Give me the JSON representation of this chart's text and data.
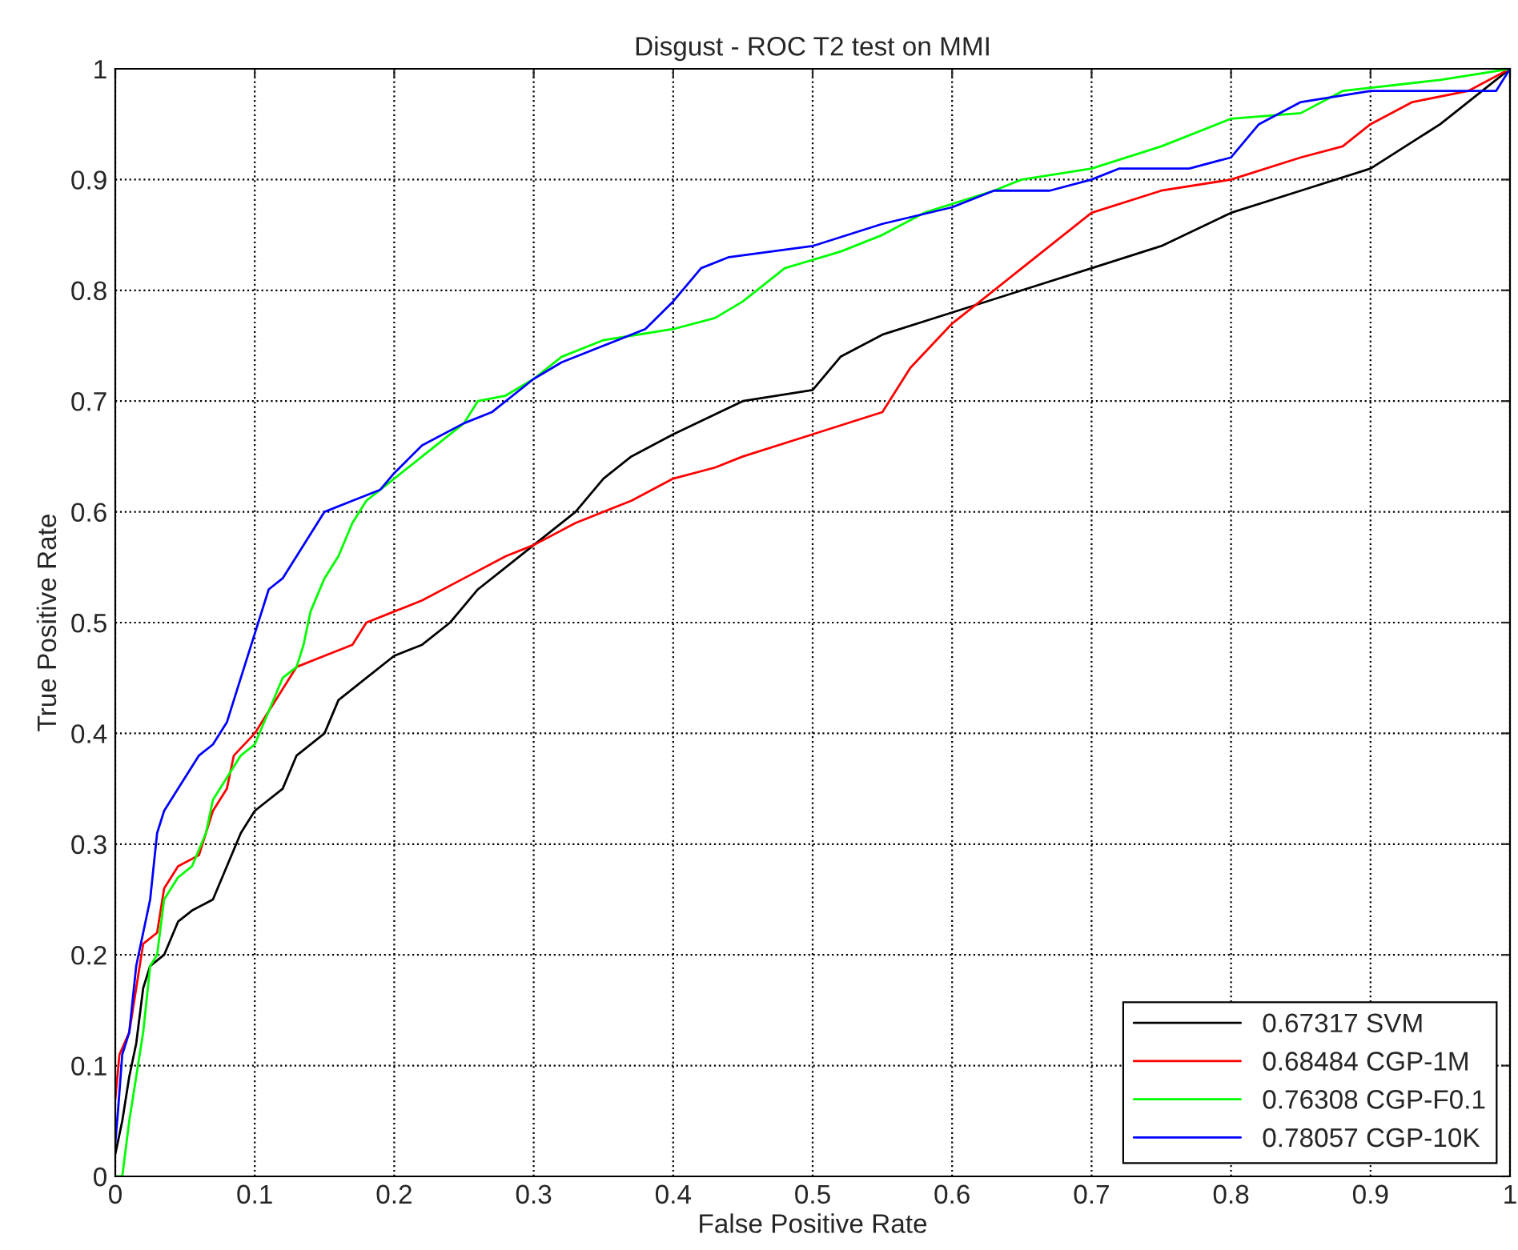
{
  "chart_data": {
    "type": "line",
    "title": "Disgust - ROC T2 test on MMI",
    "xlabel": "False Positive Rate",
    "ylabel": "True Positive Rate",
    "xlim": [
      0,
      1
    ],
    "ylim": [
      0,
      1
    ],
    "xticks": [
      0,
      0.1,
      0.2,
      0.3,
      0.4,
      0.5,
      0.6,
      0.7,
      0.8,
      0.9,
      1
    ],
    "yticks": [
      0,
      0.1,
      0.2,
      0.3,
      0.4,
      0.5,
      0.6,
      0.7,
      0.8,
      0.9,
      1
    ],
    "grid": true,
    "legend": "bottom right",
    "line_style": "solid",
    "marker": "none",
    "series": [
      {
        "name": "0.67317 SVM",
        "color": "#000000",
        "x": [
          0,
          0.005,
          0.01,
          0.015,
          0.02,
          0.025,
          0.035,
          0.045,
          0.055,
          0.07,
          0.08,
          0.09,
          0.1,
          0.12,
          0.13,
          0.15,
          0.16,
          0.18,
          0.2,
          0.22,
          0.24,
          0.26,
          0.28,
          0.3,
          0.33,
          0.35,
          0.37,
          0.4,
          0.45,
          0.5,
          0.52,
          0.55,
          0.6,
          0.65,
          0.7,
          0.75,
          0.8,
          0.85,
          0.9,
          0.95,
          0.98,
          1
        ],
        "values": [
          0.02,
          0.05,
          0.09,
          0.12,
          0.17,
          0.19,
          0.2,
          0.23,
          0.24,
          0.25,
          0.28,
          0.31,
          0.33,
          0.35,
          0.38,
          0.4,
          0.43,
          0.45,
          0.47,
          0.48,
          0.5,
          0.53,
          0.55,
          0.57,
          0.6,
          0.63,
          0.65,
          0.67,
          0.7,
          0.71,
          0.74,
          0.76,
          0.78,
          0.8,
          0.82,
          0.84,
          0.87,
          0.89,
          0.91,
          0.95,
          0.98,
          1
        ]
      },
      {
        "name": "0.68484 CGP-1M",
        "color": "#ff0000",
        "x": [
          0,
          0.003,
          0.01,
          0.015,
          0.02,
          0.03,
          0.035,
          0.045,
          0.06,
          0.07,
          0.08,
          0.085,
          0.1,
          0.11,
          0.12,
          0.13,
          0.15,
          0.17,
          0.18,
          0.2,
          0.22,
          0.25,
          0.28,
          0.3,
          0.33,
          0.37,
          0.4,
          0.43,
          0.45,
          0.5,
          0.55,
          0.57,
          0.6,
          0.63,
          0.67,
          0.7,
          0.75,
          0.8,
          0.85,
          0.88,
          0.9,
          0.93,
          0.97,
          1
        ],
        "values": [
          0.07,
          0.11,
          0.13,
          0.17,
          0.21,
          0.22,
          0.26,
          0.28,
          0.29,
          0.33,
          0.35,
          0.38,
          0.4,
          0.42,
          0.44,
          0.46,
          0.47,
          0.48,
          0.5,
          0.51,
          0.52,
          0.54,
          0.56,
          0.57,
          0.59,
          0.61,
          0.63,
          0.64,
          0.65,
          0.67,
          0.69,
          0.73,
          0.77,
          0.8,
          0.84,
          0.87,
          0.89,
          0.9,
          0.92,
          0.93,
          0.95,
          0.97,
          0.98,
          1
        ]
      },
      {
        "name": "0.76308 CGP-F0.1",
        "color": "#00ff00",
        "x": [
          0,
          0.005,
          0.01,
          0.015,
          0.02,
          0.025,
          0.03,
          0.035,
          0.045,
          0.055,
          0.065,
          0.07,
          0.08,
          0.09,
          0.1,
          0.11,
          0.12,
          0.13,
          0.135,
          0.14,
          0.15,
          0.16,
          0.17,
          0.18,
          0.2,
          0.22,
          0.25,
          0.26,
          0.28,
          0.3,
          0.32,
          0.35,
          0.4,
          0.43,
          0.45,
          0.48,
          0.52,
          0.55,
          0.58,
          0.63,
          0.65,
          0.7,
          0.75,
          0.8,
          0.85,
          0.88,
          0.95,
          1
        ],
        "values": [
          0,
          0,
          0.05,
          0.09,
          0.13,
          0.19,
          0.2,
          0.25,
          0.27,
          0.28,
          0.31,
          0.34,
          0.36,
          0.38,
          0.39,
          0.42,
          0.45,
          0.46,
          0.48,
          0.51,
          0.54,
          0.56,
          0.59,
          0.61,
          0.63,
          0.65,
          0.68,
          0.7,
          0.705,
          0.72,
          0.74,
          0.755,
          0.765,
          0.775,
          0.79,
          0.82,
          0.835,
          0.85,
          0.87,
          0.89,
          0.9,
          0.91,
          0.93,
          0.955,
          0.96,
          0.98,
          0.99,
          1
        ]
      },
      {
        "name": "0.78057 CGP-10K",
        "color": "#0000ff",
        "x": [
          0,
          0.002,
          0.005,
          0.01,
          0.015,
          0.02,
          0.025,
          0.03,
          0.035,
          0.045,
          0.06,
          0.07,
          0.08,
          0.09,
          0.1,
          0.11,
          0.12,
          0.13,
          0.14,
          0.15,
          0.17,
          0.19,
          0.2,
          0.22,
          0.25,
          0.27,
          0.3,
          0.32,
          0.35,
          0.38,
          0.4,
          0.42,
          0.44,
          0.5,
          0.55,
          0.6,
          0.63,
          0.67,
          0.7,
          0.72,
          0.77,
          0.8,
          0.82,
          0.85,
          0.9,
          0.95,
          0.99,
          1
        ],
        "values": [
          0.03,
          0.06,
          0.11,
          0.13,
          0.19,
          0.22,
          0.25,
          0.31,
          0.33,
          0.35,
          0.38,
          0.39,
          0.41,
          0.45,
          0.49,
          0.53,
          0.54,
          0.56,
          0.58,
          0.6,
          0.61,
          0.62,
          0.635,
          0.66,
          0.68,
          0.69,
          0.72,
          0.735,
          0.75,
          0.765,
          0.79,
          0.82,
          0.83,
          0.84,
          0.86,
          0.875,
          0.89,
          0.89,
          0.9,
          0.91,
          0.91,
          0.92,
          0.95,
          0.97,
          0.98,
          0.98,
          0.98,
          1
        ]
      }
    ]
  }
}
